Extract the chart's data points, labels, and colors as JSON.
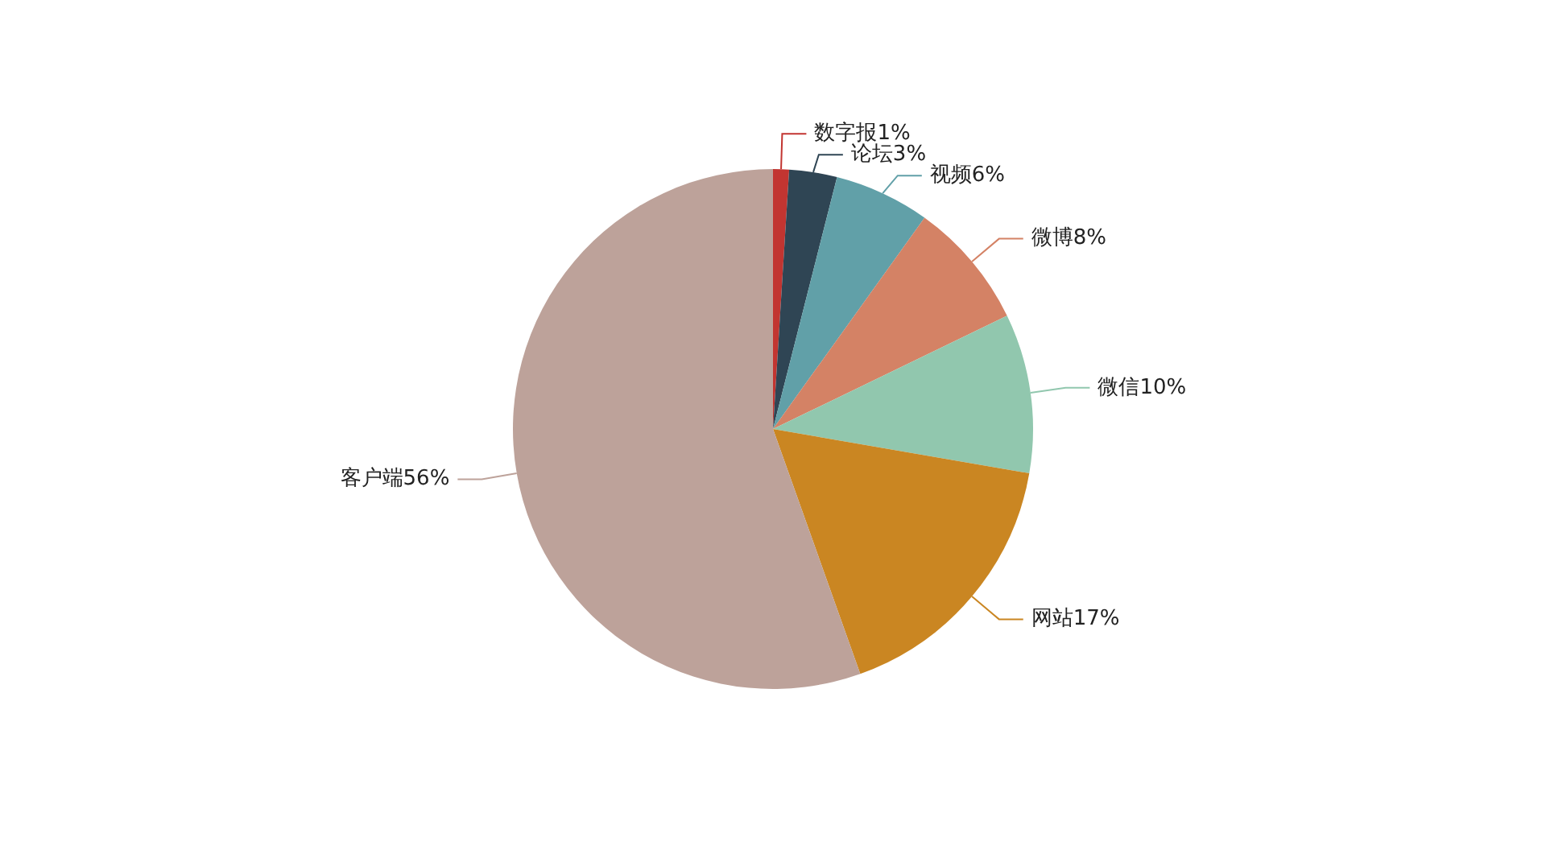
{
  "chart_data": {
    "type": "pie",
    "categories": [
      "数字报",
      "论坛",
      "视频",
      "微博",
      "微信",
      "网站",
      "客户端"
    ],
    "values": [
      1,
      3,
      6,
      8,
      10,
      17,
      56
    ],
    "value_labels": [
      "1%",
      "3%",
      "6%",
      "8%",
      "10%",
      "17%",
      "56%"
    ],
    "colors": [
      "#c23531",
      "#2f4554",
      "#61a0a8",
      "#d48265",
      "#91c7ae",
      "#ca8622",
      "#bda29a"
    ]
  }
}
